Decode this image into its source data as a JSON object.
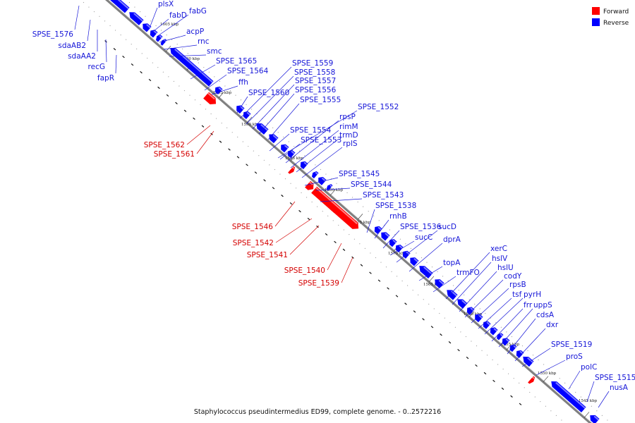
{
  "legend": [
    {
      "label": "Forward",
      "color": "#ff0000"
    },
    {
      "label": "Reverse",
      "color": "#0000ff"
    }
  ],
  "colors": {
    "forward": "#ff0000",
    "forward_text": "#d40000",
    "reverse": "#0000ff",
    "reverse_text": "#1515d8",
    "backbone": "#888888"
  },
  "caption": "Staphylococcus pseudintermedius ED99, complete genome. - 0..2572216",
  "ticks": [
    "1605 kbp",
    "1600 kbp",
    "1595 kbp",
    "1590 kbp",
    "1585 kbp",
    "1580 kbp",
    "1575 kbp",
    "1570 kbp",
    "1565 kbp",
    "1560 kbp",
    "1555 kbp",
    "1550 kbp",
    "1545 kbp"
  ],
  "reverse_genes": [
    "plsX",
    "fabG",
    "fabD",
    "acpP",
    "rnc",
    "smc",
    "SPSE_1565",
    "SPSE_1564",
    "ffh",
    "SPSE_1560",
    "SPSE_1559",
    "SPSE_1558",
    "SPSE_1557",
    "SPSE_1556",
    "SPSE_1555",
    "SPSE_1552",
    "rpsP",
    "rimM",
    "trmD",
    "rplS",
    "SPSE_1554",
    "SPSE_1553",
    "SPSE_1545",
    "SPSE_1544",
    "SPSE_1543",
    "SPSE_1538",
    "rnhB",
    "SPSE_1536",
    "sucD",
    "sucC",
    "dprA",
    "topA",
    "trmFO",
    "xerC",
    "hslV",
    "hslU",
    "codY",
    "rpsB",
    "tsf",
    "pyrH",
    "frr",
    "uppS",
    "cdsA",
    "dxr",
    "SPSE_1519",
    "proS",
    "polC",
    "SPSE_1515",
    "nusA"
  ],
  "left_reverse_genes": [
    "SPSE_1576",
    "sdaAB2",
    "sdaAA2",
    "recG",
    "fapR"
  ],
  "forward_genes": [
    "SPSE_1562",
    "SPSE_1561",
    "SPSE_1546",
    "SPSE_1542",
    "SPSE_1541",
    "SPSE_1540",
    "SPSE_1539"
  ]
}
